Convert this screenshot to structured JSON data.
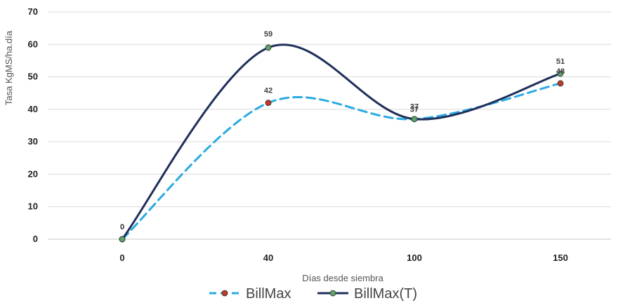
{
  "chart_data": {
    "type": "line",
    "categories": [
      "0",
      "40",
      "100",
      "150"
    ],
    "series": [
      {
        "name": "BillMax",
        "values": [
          0,
          42,
          37,
          48
        ],
        "color": "#29abe2",
        "marker_color": "#c0392b",
        "line_style": "dashed"
      },
      {
        "name": "BillMax(T)",
        "values": [
          0,
          59,
          37,
          51
        ],
        "color": "#1f2f5a",
        "marker_color": "#5aa469",
        "line_style": "solid"
      }
    ],
    "xlabel": "Días desde siembra",
    "ylabel": "Tasa KgMS/ha.día",
    "ylim": [
      0,
      70
    ],
    "yticks": [
      0,
      10,
      20,
      30,
      40,
      50,
      60,
      70
    ],
    "grid": true,
    "legend_position": "bottom",
    "smooth": true
  }
}
